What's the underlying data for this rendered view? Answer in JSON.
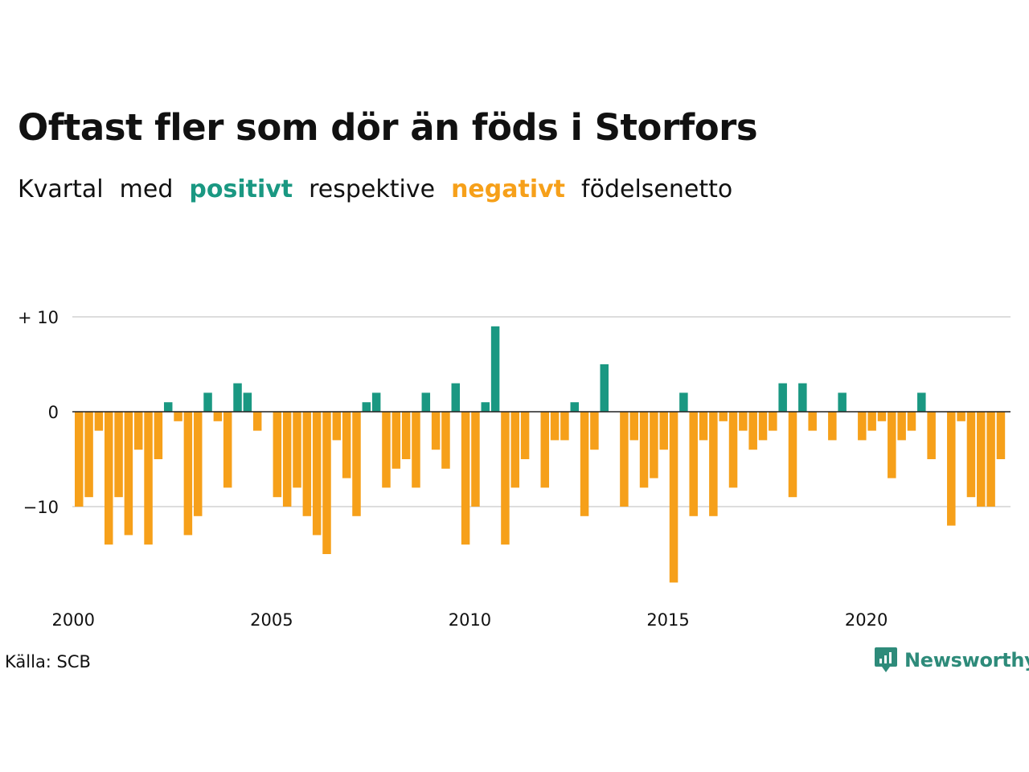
{
  "title": "Oftast fler som dör än föds i Storfors",
  "subtitle": {
    "w1": "Kvartal",
    "w2": "med",
    "positive": "positivt",
    "w3": "respektive",
    "negative": "negativt",
    "w4": "födelsenetto"
  },
  "source": "Källa: SCB",
  "brand": "Newsworthy",
  "colors": {
    "positive": "#1a9882",
    "negative": "#f6a01a",
    "grid": "#dddddd",
    "zero": "#222222"
  },
  "chart_data": {
    "type": "bar",
    "start_year": 2000,
    "quarters_per_year": 4,
    "ylim": [
      -20,
      10
    ],
    "ytick_values": [
      10,
      0,
      -10
    ],
    "ytick_labels": [
      "+ 10",
      "0",
      "−10"
    ],
    "xtick_labels": [
      "2000",
      "2005",
      "2010",
      "2015",
      "2020"
    ],
    "grid": true,
    "values": [
      -10,
      -9,
      -2,
      -14,
      -9,
      -13,
      -4,
      -14,
      -5,
      1,
      -1,
      -13,
      -11,
      2,
      -1,
      -8,
      3,
      2,
      -2,
      0,
      -9,
      -10,
      -8,
      -11,
      -13,
      -15,
      -3,
      -7,
      -11,
      1,
      2,
      -8,
      -6,
      -5,
      -8,
      2,
      -4,
      -6,
      3,
      -14,
      -10,
      1,
      9,
      -14,
      -8,
      -5,
      0,
      -8,
      -3,
      -3,
      1,
      -11,
      -4,
      5,
      0,
      -10,
      -3,
      -8,
      -7,
      -4,
      -18,
      2,
      -11,
      -3,
      -11,
      -1,
      -8,
      -2,
      -4,
      -3,
      -2,
      3,
      -9,
      3,
      -2,
      0,
      -3,
      2,
      0,
      -3,
      -2,
      -1,
      -7,
      -3,
      -2,
      2,
      -5,
      0,
      -12,
      -1,
      -9,
      -10,
      -10,
      -5
    ]
  }
}
